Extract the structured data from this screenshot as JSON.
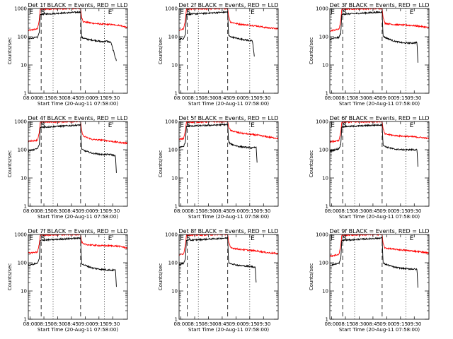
{
  "colors": {
    "events": "#000000",
    "lld": "#ff0000",
    "background": "#ffffff"
  },
  "chart_data": {
    "type": "line",
    "xlabel": "Start Time (20-Aug-11 07:58:00)",
    "ylabel": "Counts/sec",
    "xlim_minutes": [
      0,
      108
    ],
    "x_tick_labels": [
      "08:00",
      "08:15",
      "08:30",
      "08:45",
      "09:00",
      "09:15",
      "09:30"
    ],
    "x_tick_minutes": [
      2,
      17,
      32,
      47,
      62,
      77,
      92
    ],
    "y_scale": "log",
    "ylim": [
      1,
      1000
    ],
    "y_tick_labels": [
      "1",
      "10",
      "100",
      "1000"
    ],
    "y_tick_values": [
      1,
      10,
      100,
      1000
    ],
    "grid": false,
    "marker_labels": [
      "E",
      "S",
      "E"
    ],
    "panels": [
      {
        "title": "Det 1f BLACK = Events, RED = LLD",
        "dashed_min": [
          14,
          57
        ],
        "dotted_min": [
          27,
          83
        ],
        "marker_min": [
          1,
          14,
          87
        ],
        "series": [
          {
            "name": "Events",
            "color": "#000000",
            "x": [
              0,
              6,
              10,
              12,
              13,
              57,
              58,
              60,
              65,
              75,
              80,
              85,
              90,
              96
            ],
            "y": [
              85,
              92,
              95,
              140,
              620,
              750,
              95,
              90,
              80,
              72,
              66,
              70,
              63,
              14
            ]
          },
          {
            "name": "LLD",
            "color": "#ff0000",
            "x": [
              0,
              6,
              10,
              12,
              13,
              57,
              58,
              60,
              70,
              80,
              90,
              100,
              108
            ],
            "y": [
              165,
              180,
              190,
              400,
              950,
              1000,
              500,
              340,
              300,
              280,
              270,
              250,
              210
            ]
          }
        ]
      },
      {
        "title": "Det 2f BLACK = Events, RED = LLD",
        "dashed_min": [
          9,
          53
        ],
        "dotted_min": [
          21,
          77
        ],
        "marker_min": [
          1,
          8,
          78
        ],
        "series": [
          {
            "name": "Events",
            "color": "#000000",
            "x": [
              0,
              5,
              7,
              8,
              53,
              54,
              56,
              65,
              75,
              80,
              82
            ],
            "y": [
              80,
              88,
              120,
              620,
              750,
              110,
              100,
              85,
              75,
              70,
              20
            ]
          },
          {
            "name": "LLD",
            "color": "#ff0000",
            "x": [
              0,
              5,
              7,
              8,
              53,
              54,
              56,
              65,
              75,
              85,
              95,
              108
            ],
            "y": [
              170,
              190,
              420,
              950,
              1000,
              520,
              330,
              280,
              260,
              240,
              210,
              190
            ]
          }
        ]
      },
      {
        "title": "Det 3f BLACK = Events, RED = LLD",
        "dashed_min": [
          14,
          57
        ],
        "dotted_min": [
          27,
          83
        ],
        "marker_min": [
          1,
          14,
          87
        ],
        "series": [
          {
            "name": "Events",
            "color": "#000000",
            "x": [
              0,
              6,
              10,
              12,
              13,
              57,
              58,
              60,
              70,
              80,
              90,
              95,
              96
            ],
            "y": [
              80,
              90,
              95,
              140,
              620,
              750,
              105,
              95,
              70,
              60,
              60,
              62,
              12
            ]
          },
          {
            "name": "LLD",
            "color": "#ff0000",
            "x": [
              0,
              6,
              10,
              12,
              13,
              57,
              58,
              60,
              70,
              80,
              90,
              100,
              108
            ],
            "y": [
              160,
              175,
              185,
              380,
              950,
              1000,
              480,
              300,
              270,
              260,
              250,
              230,
              210
            ]
          }
        ]
      },
      {
        "title": "Det 4f BLACK = Events, RED = LLD",
        "dashed_min": [
          14,
          57
        ],
        "dotted_min": [
          27,
          83
        ],
        "marker_min": [
          1,
          14,
          87
        ],
        "series": [
          {
            "name": "Events",
            "color": "#000000",
            "x": [
              0,
              6,
              10,
              12,
              13,
              57,
              58,
              60,
              70,
              80,
              90,
              95,
              96
            ],
            "y": [
              90,
              100,
              110,
              150,
              620,
              750,
              110,
              95,
              75,
              68,
              68,
              60,
              15
            ]
          },
          {
            "name": "LLD",
            "color": "#ff0000",
            "x": [
              0,
              6,
              10,
              12,
              13,
              57,
              58,
              60,
              70,
              80,
              90,
              100,
              108
            ],
            "y": [
              200,
              210,
              220,
              400,
              950,
              1000,
              480,
              300,
              230,
              220,
              200,
              180,
              170
            ]
          }
        ]
      },
      {
        "title": "Det 5f BLACK = Events, RED = LLD",
        "dashed_min": [
          9,
          53
        ],
        "dotted_min": [
          21,
          77
        ],
        "marker_min": [
          1,
          8,
          78
        ],
        "series": [
          {
            "name": "Events",
            "color": "#000000",
            "x": [
              0,
              5,
              7,
              8,
              53,
              54,
              56,
              65,
              75,
              80,
              84,
              85
            ],
            "y": [
              120,
              130,
              200,
              680,
              780,
              190,
              160,
              130,
              120,
              115,
              125,
              35
            ]
          },
          {
            "name": "LLD",
            "color": "#ff0000",
            "x": [
              0,
              5,
              7,
              8,
              53,
              54,
              56,
              65,
              75,
              85,
              95,
              108
            ],
            "y": [
              230,
              250,
              500,
              950,
              1000,
              650,
              480,
              400,
              360,
              330,
              290,
              250
            ]
          }
        ]
      },
      {
        "title": "Det 6f BLACK = Events, RED = LLD",
        "dashed_min": [
          14,
          57
        ],
        "dotted_min": [
          27,
          83
        ],
        "marker_min": [
          1,
          14,
          87
        ],
        "series": [
          {
            "name": "Events",
            "color": "#000000",
            "x": [
              0,
              6,
              10,
              12,
              13,
              57,
              58,
              60,
              70,
              80,
              90,
              95,
              96
            ],
            "y": [
              90,
              100,
              110,
              160,
              650,
              760,
              150,
              130,
              105,
              100,
              100,
              100,
              25
            ]
          },
          {
            "name": "LLD",
            "color": "#ff0000",
            "x": [
              0,
              6,
              10,
              12,
              13,
              57,
              58,
              60,
              70,
              80,
              90,
              100,
              108
            ],
            "y": [
              190,
              200,
              210,
              420,
              950,
              1000,
              550,
              360,
              320,
              300,
              290,
              270,
              250
            ]
          }
        ]
      },
      {
        "title": "Det 7f BLACK = Events, RED = LLD",
        "dashed_min": [
          14,
          57
        ],
        "dotted_min": [
          27,
          83
        ],
        "marker_min": [
          1,
          14,
          87
        ],
        "series": [
          {
            "name": "Events",
            "color": "#000000",
            "x": [
              0,
              6,
              10,
              12,
              13,
              57,
              58,
              60,
              70,
              80,
              90,
              95,
              96
            ],
            "y": [
              80,
              90,
              95,
              140,
              620,
              750,
              95,
              85,
              65,
              58,
              55,
              55,
              14
            ]
          },
          {
            "name": "LLD",
            "color": "#ff0000",
            "x": [
              0,
              6,
              10,
              12,
              13,
              57,
              58,
              60,
              70,
              80,
              90,
              100,
              108
            ],
            "y": [
              220,
              230,
              240,
              460,
              950,
              1000,
              560,
              450,
              420,
              400,
              400,
              380,
              330
            ]
          }
        ]
      },
      {
        "title": "Det 8f BLACK = Events, RED = LLD",
        "dashed_min": [
          9,
          53
        ],
        "dotted_min": [
          21,
          77
        ],
        "marker_min": [
          1,
          8,
          78
        ],
        "series": [
          {
            "name": "Events",
            "color": "#000000",
            "x": [
              0,
              5,
              7,
              8,
              53,
              54,
              56,
              65,
              75,
              80,
              83,
              84
            ],
            "y": [
              85,
              95,
              140,
              620,
              750,
              100,
              95,
              80,
              75,
              72,
              70,
              20
            ]
          },
          {
            "name": "LLD",
            "color": "#ff0000",
            "x": [
              0,
              5,
              7,
              8,
              53,
              54,
              56,
              65,
              75,
              85,
              95,
              108
            ],
            "y": [
              190,
              210,
              440,
              950,
              1000,
              550,
              340,
              300,
              280,
              260,
              230,
              210
            ]
          }
        ]
      },
      {
        "title": "Det 9f BLACK = Events, RED = LLD",
        "dashed_min": [
          14,
          57
        ],
        "dotted_min": [
          27,
          83
        ],
        "marker_min": [
          1,
          14,
          87
        ],
        "series": [
          {
            "name": "Events",
            "color": "#000000",
            "x": [
              0,
              6,
              10,
              12,
              13,
              57,
              58,
              60,
              70,
              80,
              90,
              95,
              96
            ],
            "y": [
              80,
              90,
              95,
              140,
              620,
              750,
              100,
              90,
              70,
              62,
              60,
              58,
              13
            ]
          },
          {
            "name": "LLD",
            "color": "#ff0000",
            "x": [
              0,
              6,
              10,
              12,
              13,
              57,
              58,
              60,
              70,
              80,
              90,
              100,
              108
            ],
            "y": [
              170,
              185,
              200,
              410,
              950,
              1000,
              480,
              330,
              300,
              280,
              260,
              240,
              220
            ]
          }
        ]
      }
    ]
  }
}
